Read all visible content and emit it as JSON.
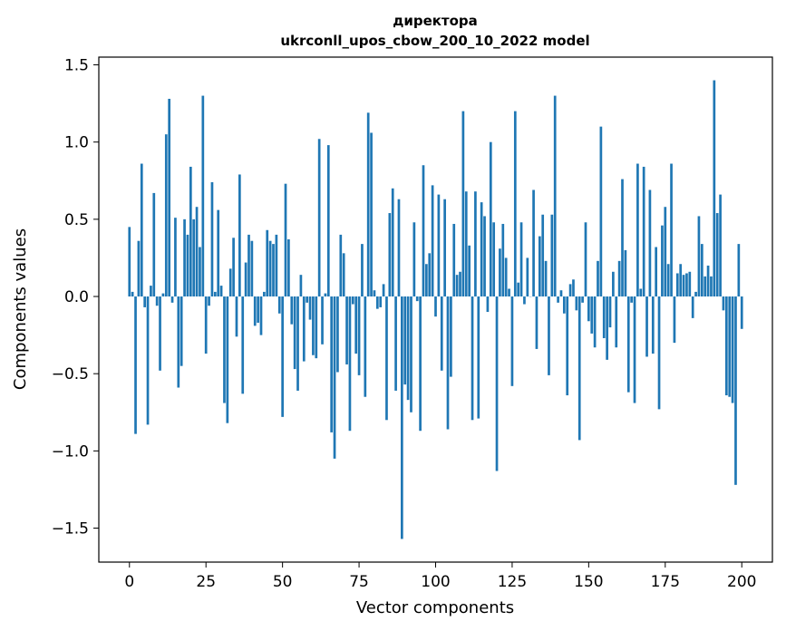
{
  "chart_data": {
    "type": "bar",
    "title_line1": "директора",
    "title_line2": "ukrconll_upos_cbow_200_10_2022 model",
    "xlabel": "Vector components",
    "ylabel": "Components values",
    "xlim": [
      -10,
      210
    ],
    "ylim": [
      -1.72,
      1.55
    ],
    "xticks": [
      0,
      25,
      50,
      75,
      100,
      125,
      150,
      175,
      200
    ],
    "yticks": [
      -1.5,
      -1.0,
      -0.5,
      0.0,
      0.5,
      1.0,
      1.5
    ],
    "ytick_labels": [
      "−1.5",
      "−1.0",
      "−0.5",
      "0.0",
      "0.5",
      "1.0",
      "1.5"
    ],
    "bar_color": "#1f77b4",
    "values": [
      0.45,
      0.03,
      -0.89,
      0.36,
      0.86,
      -0.07,
      -0.83,
      0.07,
      0.67,
      -0.06,
      -0.48,
      0.02,
      1.05,
      1.28,
      -0.04,
      0.51,
      -0.59,
      -0.45,
      0.5,
      0.4,
      0.84,
      0.5,
      0.58,
      0.32,
      1.3,
      -0.37,
      -0.06,
      0.74,
      0.03,
      0.56,
      0.07,
      -0.69,
      -0.82,
      0.18,
      0.38,
      -0.26,
      0.79,
      -0.63,
      0.22,
      0.4,
      0.36,
      -0.19,
      -0.17,
      -0.25,
      0.03,
      0.43,
      0.36,
      0.34,
      0.4,
      -0.11,
      -0.78,
      0.73,
      0.37,
      -0.18,
      -0.47,
      -0.61,
      0.14,
      -0.42,
      -0.04,
      -0.15,
      -0.38,
      -0.4,
      1.02,
      -0.31,
      0.02,
      0.98,
      -0.88,
      -1.05,
      -0.49,
      0.4,
      0.28,
      -0.44,
      -0.87,
      -0.05,
      -0.37,
      -0.51,
      0.34,
      -0.65,
      1.19,
      1.06,
      0.04,
      -0.08,
      -0.07,
      0.08,
      -0.8,
      0.54,
      0.7,
      -0.61,
      0.63,
      -1.57,
      -0.57,
      -0.67,
      -0.75,
      0.48,
      -0.03,
      -0.87,
      0.85,
      0.21,
      0.28,
      0.72,
      -0.13,
      0.66,
      -0.48,
      0.63,
      -0.86,
      -0.52,
      0.47,
      0.14,
      0.16,
      1.2,
      0.68,
      0.33,
      -0.8,
      0.68,
      -0.79,
      0.61,
      0.52,
      -0.1,
      1.0,
      0.48,
      -1.13,
      0.31,
      0.47,
      0.25,
      0.05,
      -0.58,
      1.2,
      0.09,
      0.48,
      -0.05,
      0.25,
      0.0,
      0.69,
      -0.34,
      0.39,
      0.53,
      0.23,
      -0.51,
      0.53,
      1.3,
      -0.04,
      0.04,
      -0.11,
      -0.64,
      0.08,
      0.11,
      -0.09,
      -0.93,
      -0.04,
      0.48,
      -0.16,
      -0.24,
      -0.33,
      0.23,
      1.1,
      -0.27,
      -0.41,
      -0.2,
      0.16,
      -0.33,
      0.23,
      0.76,
      0.3,
      -0.62,
      -0.04,
      -0.69,
      0.86,
      0.05,
      0.84,
      -0.39,
      0.69,
      -0.37,
      0.32,
      -0.73,
      0.46,
      0.58,
      0.21,
      0.86,
      -0.3,
      0.15,
      0.21,
      0.14,
      0.15,
      0.16,
      -0.14,
      0.03,
      0.52,
      0.34,
      0.13,
      0.2,
      0.13,
      1.4,
      0.54,
      0.66,
      -0.09,
      -0.64,
      -0.65,
      -0.69,
      -1.22,
      0.34,
      -0.21
    ]
  }
}
